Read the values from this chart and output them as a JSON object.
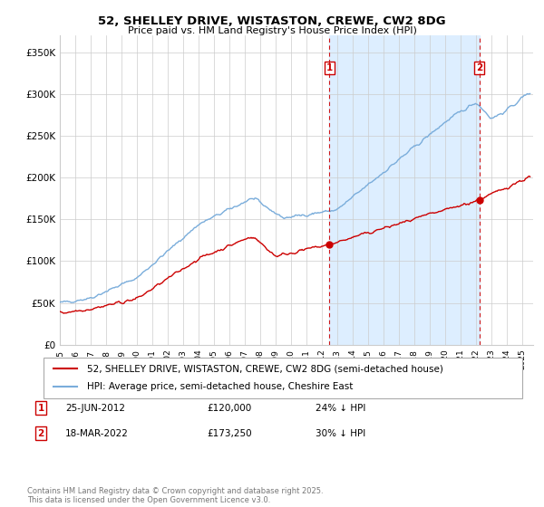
{
  "title": "52, SHELLEY DRIVE, WISTASTON, CREWE, CW2 8DG",
  "subtitle": "Price paid vs. HM Land Registry's House Price Index (HPI)",
  "legend_red": "52, SHELLEY DRIVE, WISTASTON, CREWE, CW2 8DG (semi-detached house)",
  "legend_blue": "HPI: Average price, semi-detached house, Cheshire East",
  "annotation1_label": "1",
  "annotation1_date": "25-JUN-2012",
  "annotation1_price": "£120,000",
  "annotation1_hpi": "24% ↓ HPI",
  "annotation1_year": 2012.48,
  "annotation1_value_red": 120000,
  "annotation2_label": "2",
  "annotation2_date": "18-MAR-2022",
  "annotation2_price": "£173,250",
  "annotation2_hpi": "30% ↓ HPI",
  "annotation2_year": 2022.21,
  "annotation2_value_red": 173250,
  "ylim": [
    0,
    370000
  ],
  "yticks": [
    0,
    50000,
    100000,
    150000,
    200000,
    250000,
    300000,
    350000
  ],
  "xlim_start": 1995,
  "xlim_end": 2025.7,
  "footer": "Contains HM Land Registry data © Crown copyright and database right 2025.\nThis data is licensed under the Open Government Licence v3.0.",
  "red_color": "#cc0000",
  "blue_color": "#7aaddb",
  "shade_color": "#ddeeff",
  "vline_color": "#cc0000",
  "background_color": "#ffffff",
  "grid_color": "#cccccc"
}
